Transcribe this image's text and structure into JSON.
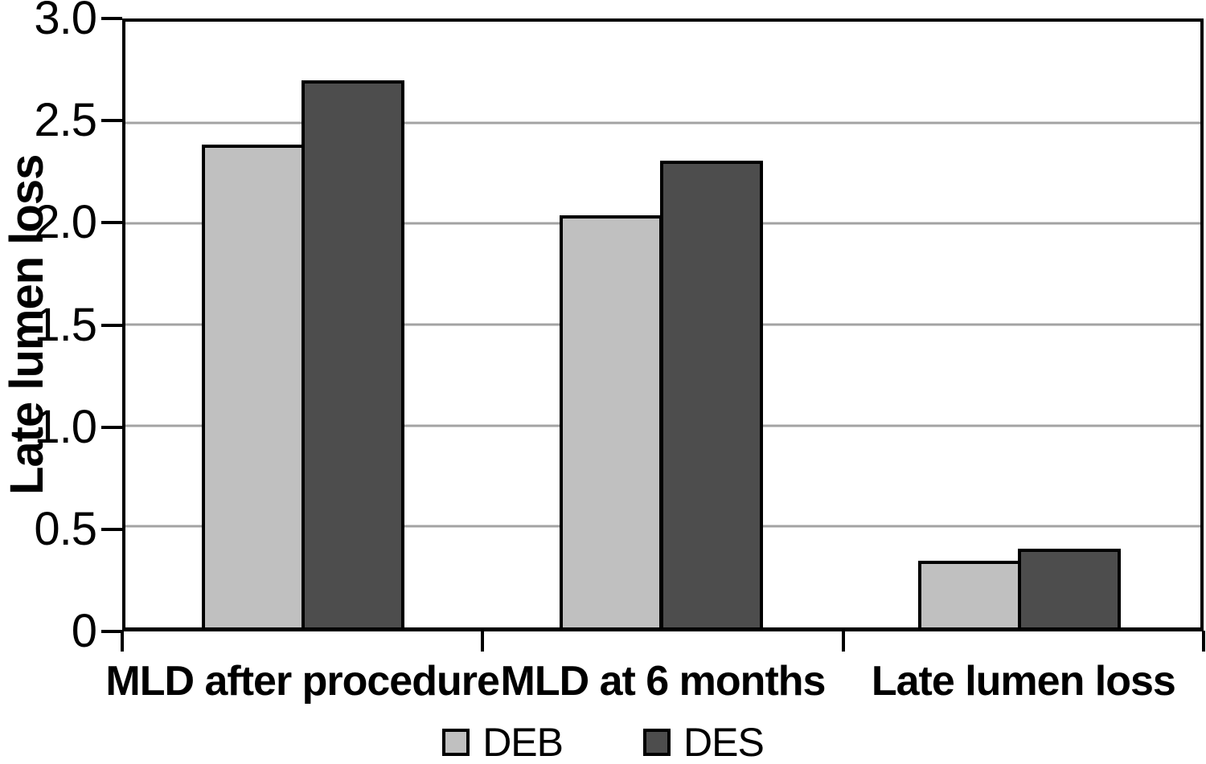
{
  "figure": {
    "background_color": "#ffffff",
    "axis_color": "#000000",
    "gridline_color": "#a3a3a3",
    "bar_border_color": "#000000",
    "text_color": "#000000"
  },
  "chart_data": {
    "type": "bar",
    "title": "",
    "xlabel": "",
    "ylabel": "Late lumen loss",
    "categories": [
      "MLD after procedure",
      "MLD at 6 months",
      "Late lumen loss"
    ],
    "series": [
      {
        "name": "DEB",
        "color": "#c0c0c0",
        "values": [
          2.39,
          2.04,
          0.33
        ]
      },
      {
        "name": "DES",
        "color": "#4d4d4d",
        "values": [
          2.71,
          2.31,
          0.39
        ]
      }
    ],
    "ylim": [
      0,
      3.0
    ],
    "y_ticks": {
      "values": [
        0,
        0.5,
        1.0,
        1.5,
        2.0,
        2.5,
        3.0
      ],
      "labels": [
        "0",
        "0.5",
        "1.0",
        "1.5",
        "2.0",
        "2.5",
        "3.0"
      ]
    },
    "grid": true,
    "legend_position": "bottom",
    "legend_entries": [
      "DEB",
      "DES"
    ]
  }
}
